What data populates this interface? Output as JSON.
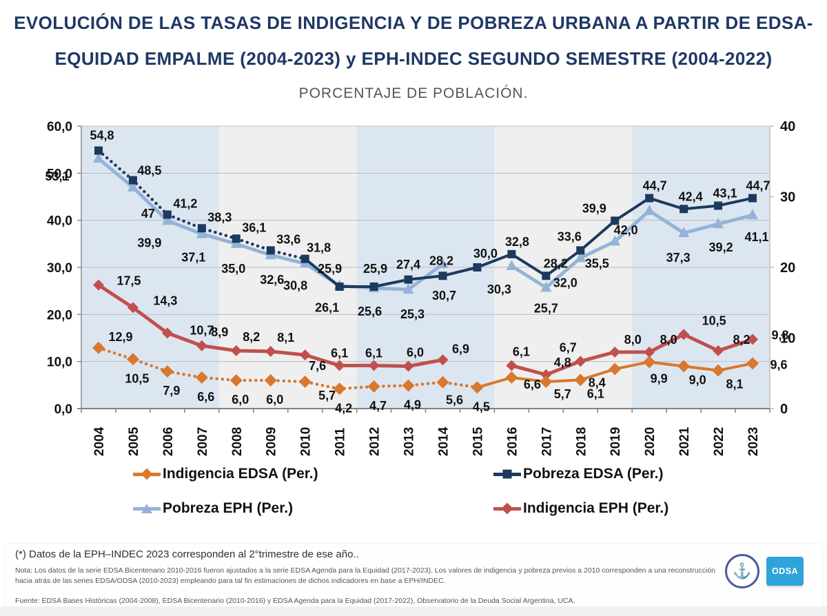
{
  "header": {
    "title_line1": "EVOLUCIÓN DE LAS TASAS DE INDIGENCIA Y DE POBREZA URBANA A PARTIR DE EDSA-",
    "title_line2": "EQUIDAD EMPALME (2004-2023) y EPH-INDEC SEGUNDO SEMESTRE (2004-2022)",
    "subtitle": "PORCENTAJE DE POBLACIÓN."
  },
  "chart_data": {
    "type": "line",
    "x": [
      "2004",
      "2005",
      "2006",
      "2007",
      "2008",
      "2009",
      "2010",
      "2011",
      "2012",
      "2013",
      "2014",
      "2015",
      "2016",
      "2017",
      "2018",
      "2019",
      "2020",
      "2021",
      "2022",
      "2023"
    ],
    "left_axis": {
      "min": 0,
      "max": 60,
      "ticks": [
        "0,0",
        "10,0",
        "20,0",
        "30,0",
        "40,0",
        "50,0",
        "60,0"
      ]
    },
    "right_axis": {
      "min": 0,
      "max": 40,
      "ticks": [
        "0",
        "10",
        "20",
        "30",
        "40"
      ]
    },
    "gridline_color": "#BDBDBD",
    "plot_bands": {
      "group_size": 4,
      "colors": [
        "#DCE6F1",
        "#EFEFEF"
      ]
    },
    "series": [
      {
        "name": "Pobreza EPH (Per.)",
        "color": "#95B3D7",
        "marker": "triangle",
        "marker_size": 8,
        "width": 5,
        "axis": "left",
        "dotted_until": 0,
        "values": [
          53.1,
          47,
          39.9,
          37.1,
          35.0,
          32.6,
          30.8,
          26.1,
          25.6,
          25.3,
          30.7,
          null,
          30.3,
          25.7,
          32.0,
          35.5,
          42.0,
          37.3,
          39.2,
          41.1
        ],
        "labels": [
          "53,1",
          "47",
          "39,9",
          "37,1",
          "35,0",
          "32,6",
          "30,8",
          "26,1",
          "25,6",
          "25,3",
          "30,7",
          "",
          "30,3",
          "25,7",
          "32,0",
          "35,5",
          "42,0",
          "37,3",
          "39,2",
          "41,1"
        ],
        "label_default": [
          0,
          36
        ],
        "label_offsets": {
          "0": [
            -60,
            32
          ],
          "1": [
            22,
            44
          ],
          "2": [
            -26,
            38
          ],
          "3": [
            -12,
            40
          ],
          "4": [
            -4,
            42
          ],
          "5": [
            2,
            42
          ],
          "6": [
            -14,
            38
          ],
          "7": [
            -18,
            38
          ],
          "8": [
            -6,
            40
          ],
          "9": [
            6,
            42
          ],
          "10": [
            2,
            52
          ],
          "12": [
            -18,
            40
          ],
          "14": [
            -22,
            42
          ],
          "15": [
            -26,
            38
          ],
          "16": [
            -34,
            34
          ],
          "17": [
            -8,
            42
          ],
          "18": [
            4,
            40
          ],
          "19": [
            6,
            38
          ]
        }
      },
      {
        "name": "Pobreza EDSA (Per.)",
        "color": "#1C3A5E",
        "marker": "square",
        "marker_size": 6,
        "width": 4,
        "axis": "left",
        "dotted_until": 6,
        "values": [
          54.8,
          48.5,
          41.2,
          38.3,
          36.1,
          33.6,
          31.8,
          25.9,
          25.9,
          27.4,
          28.2,
          30.0,
          32.8,
          28.2,
          33.6,
          39.9,
          44.7,
          42.4,
          43.1,
          44.7
        ],
        "labels": [
          "54,8",
          "48,5",
          "41,2",
          "38,3",
          "36,1",
          "33,6",
          "31,8",
          "25,9",
          "25,9",
          "27,4",
          "28,2",
          "30,0",
          "32,8",
          "28,2",
          "33,6",
          "39,9",
          "44,7",
          "42,4",
          "43,1",
          "44,7"
        ],
        "label_default": [
          8,
          -12
        ],
        "label_offsets": {
          "0": [
            5,
            -16
          ],
          "1": [
            24,
            -8
          ],
          "2": [
            26,
            -10
          ],
          "3": [
            26,
            -10
          ],
          "4": [
            26,
            -10
          ],
          "5": [
            26,
            -10
          ],
          "6": [
            20,
            -10
          ],
          "7": [
            -14,
            -20
          ],
          "8": [
            2,
            -20
          ],
          "9": [
            0,
            -16
          ],
          "10": [
            -2,
            -16
          ],
          "11": [
            12,
            -14
          ],
          "13": [
            14,
            -12
          ],
          "14": [
            -16,
            -14
          ],
          "15": [
            -30,
            -12
          ],
          "17": [
            10,
            -12
          ],
          "18": [
            10,
            -12
          ]
        }
      },
      {
        "name": "Indigencia EPH (Per.)",
        "color": "#C0504D",
        "marker": "diamond",
        "marker_size": 7,
        "width": 5,
        "axis": "right",
        "dotted_until": 0,
        "values": [
          17.5,
          14.3,
          10.7,
          8.9,
          8.2,
          8.1,
          7.6,
          6.1,
          6.1,
          6.0,
          6.9,
          null,
          6.1,
          4.8,
          6.7,
          8.0,
          8.0,
          10.5,
          8.2,
          9.8
        ],
        "labels": [
          "17,5",
          "14,3",
          "10,7",
          "8,9",
          "8,2",
          "8,1",
          "7,6",
          "6,1",
          "6,1",
          "6,0",
          "6,9",
          "",
          "6,1",
          "4,8",
          "6,7",
          "8,0",
          "8,0",
          "10,5",
          "8,2",
          "9,8"
        ],
        "label_default": [
          0,
          -12
        ],
        "label_offsets": {
          "0": [
            44,
            0
          ],
          "1": [
            47,
            -4
          ],
          "2": [
            50,
            2
          ],
          "3": [
            26,
            -14
          ],
          "4": [
            22,
            -14
          ],
          "5": [
            22,
            -14
          ],
          "6": [
            18,
            22
          ],
          "9": [
            10,
            -14
          ],
          "10": [
            26,
            -10
          ],
          "12": [
            14,
            -14
          ],
          "13": [
            24,
            -12
          ],
          "14": [
            -18,
            -14
          ],
          "15": [
            26,
            -12
          ],
          "16": [
            28,
            -12
          ],
          "17": [
            44,
            -14
          ],
          "18": [
            34,
            -10
          ],
          "19": [
            40,
            0
          ]
        }
      },
      {
        "name": "Indigencia EDSA (Per.)",
        "color": "#D9782D",
        "marker": "diamond",
        "marker_size": 8,
        "width": 4,
        "axis": "left",
        "dotted_until": 11,
        "values": [
          12.9,
          10.5,
          7.9,
          6.6,
          6.0,
          6.0,
          5.7,
          4.2,
          4.7,
          4.9,
          5.6,
          4.5,
          6.6,
          5.7,
          6.1,
          8.4,
          9.9,
          9.0,
          8.1,
          9.6
        ],
        "labels": [
          "12,9",
          "10,5",
          "7,9",
          "6,6",
          "6,0",
          "6,0",
          "5,7",
          "4,2",
          "4,7",
          "4,9",
          "5,6",
          "4,5",
          "6,6",
          "5,7",
          "6,1",
          "8,4",
          "9,9",
          "9,0",
          "8,1",
          "9,6"
        ],
        "label_default": [
          6,
          34
        ],
        "label_offsets": {
          "0": [
            32,
            -10
          ],
          "6": [
            32,
            26
          ],
          "10": [
            17,
            32
          ],
          "12": [
            30,
            16
          ],
          "13": [
            24,
            24
          ],
          "14": [
            22,
            26
          ],
          "15": [
            -26,
            26
          ],
          "16": [
            14,
            30
          ],
          "17": [
            20,
            26
          ],
          "18": [
            24,
            26
          ],
          "19": [
            38,
            8
          ]
        }
      }
    ]
  },
  "legend": {
    "items": [
      {
        "label": "Indigencia EDSA (Per.)",
        "color": "#D9782D",
        "marker": "diamond"
      },
      {
        "label": "Pobreza EDSA (Per.)",
        "color": "#1C3A5E",
        "marker": "square"
      },
      {
        "label": "Pobreza EPH (Per.)",
        "color": "#95B3D7",
        "marker": "triangle"
      },
      {
        "label": "Indigencia EPH (Per.)",
        "color": "#C0504D",
        "marker": "diamond"
      }
    ]
  },
  "footnotes": {
    "star": "(*) Datos de la EPH–INDEC 2023 corresponden al 2°trimestre de ese año..",
    "nota": "Nota: Los datos de la serie EDSA Bicentenario 2010-2016 fueron ajustados a la serie EDSA Agenda para la Equidad (2017-2023). Los valores de indigencia y pobreza previos a 2010 corresponden a una reconstrucción hacia atrás de las series EDSA/ODSA (2010-2023) empleando para tal fin estimaciones de dichos indicadores en base a EPH/INDEC.",
    "fuente": "Fuente: EDSA Bases Históricas (2004-2008), EDSA Bicentenario (2010-2016) y EDSA Agenda para la Equidad (2017-2022), Observatorio de la Deuda Social Argentina, UCA."
  },
  "logos": {
    "uca_symbol": "⚓",
    "odsa_label": "ODSA"
  }
}
